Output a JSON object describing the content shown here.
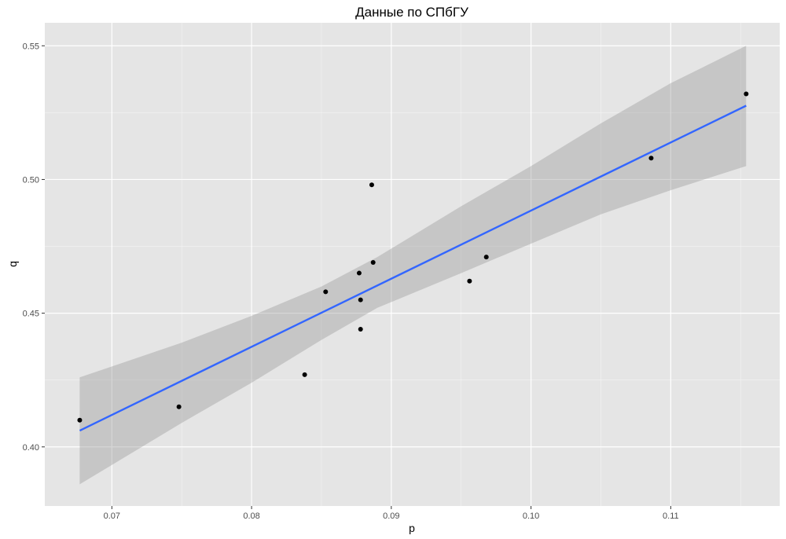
{
  "chart_data": {
    "type": "scatter",
    "title": "Данные по СПбГУ",
    "xlabel": "p",
    "ylabel": "q",
    "xlim": [
      0.0652,
      0.1178
    ],
    "ylim": [
      0.3779,
      0.5586
    ],
    "x_ticks": [
      {
        "value": 0.07,
        "label": "0.07"
      },
      {
        "value": 0.08,
        "label": "0.08"
      },
      {
        "value": 0.09,
        "label": "0.09"
      },
      {
        "value": 0.1,
        "label": "0.10"
      },
      {
        "value": 0.11,
        "label": "0.11"
      }
    ],
    "y_ticks": [
      {
        "value": 0.4,
        "label": "0.40"
      },
      {
        "value": 0.45,
        "label": "0.45"
      },
      {
        "value": 0.5,
        "label": "0.50"
      },
      {
        "value": 0.55,
        "label": "0.55"
      }
    ],
    "grid": true,
    "points": [
      {
        "x": 0.0677,
        "y": 0.41
      },
      {
        "x": 0.0748,
        "y": 0.415
      },
      {
        "x": 0.0838,
        "y": 0.427
      },
      {
        "x": 0.0853,
        "y": 0.458
      },
      {
        "x": 0.0877,
        "y": 0.465
      },
      {
        "x": 0.0878,
        "y": 0.455
      },
      {
        "x": 0.0878,
        "y": 0.444
      },
      {
        "x": 0.0886,
        "y": 0.498
      },
      {
        "x": 0.0887,
        "y": 0.469
      },
      {
        "x": 0.0956,
        "y": 0.462
      },
      {
        "x": 0.0968,
        "y": 0.471
      },
      {
        "x": 0.1086,
        "y": 0.508
      },
      {
        "x": 0.1154,
        "y": 0.532
      }
    ],
    "fit_line": {
      "x": [
        0.0677,
        0.1154
      ],
      "y": [
        0.4061,
        0.5276
      ]
    },
    "confidence_band": [
      {
        "x": 0.0677,
        "lower": 0.386,
        "upper": 0.426
      },
      {
        "x": 0.075,
        "lower": 0.409,
        "upper": 0.439
      },
      {
        "x": 0.08,
        "lower": 0.424,
        "upper": 0.449
      },
      {
        "x": 0.085,
        "lower": 0.44,
        "upper": 0.46
      },
      {
        "x": 0.089,
        "lower": 0.452,
        "upper": 0.471
      },
      {
        "x": 0.095,
        "lower": 0.465,
        "upper": 0.49
      },
      {
        "x": 0.1,
        "lower": 0.476,
        "upper": 0.505
      },
      {
        "x": 0.105,
        "lower": 0.487,
        "upper": 0.521
      },
      {
        "x": 0.11,
        "lower": 0.496,
        "upper": 0.536
      },
      {
        "x": 0.1154,
        "lower": 0.505,
        "upper": 0.55
      }
    ],
    "colors": {
      "panel_background": "#e5e5e5",
      "grid_line": "#ffffff",
      "fit_line": "#3366ff",
      "confidence_band": "#999999",
      "points": "#000000"
    }
  }
}
